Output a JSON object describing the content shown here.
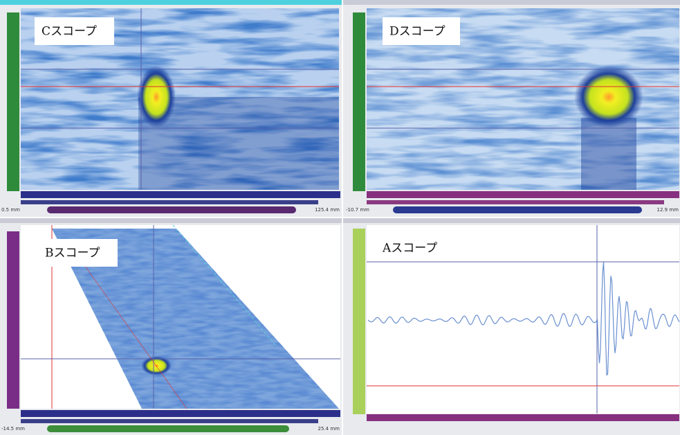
{
  "panels": [
    {
      "label": "Cスコープ",
      "range_start": "0.5 mm",
      "range_end": "125.4 mm"
    },
    {
      "label": "Dスコープ",
      "range_start": "-10.7 mm",
      "range_end": "12.9 mm"
    },
    {
      "label": "Bスコープ",
      "range_start": "-14.5 mm",
      "range_end": "25.4 mm"
    },
    {
      "label": "Aスコープ"
    }
  ]
}
